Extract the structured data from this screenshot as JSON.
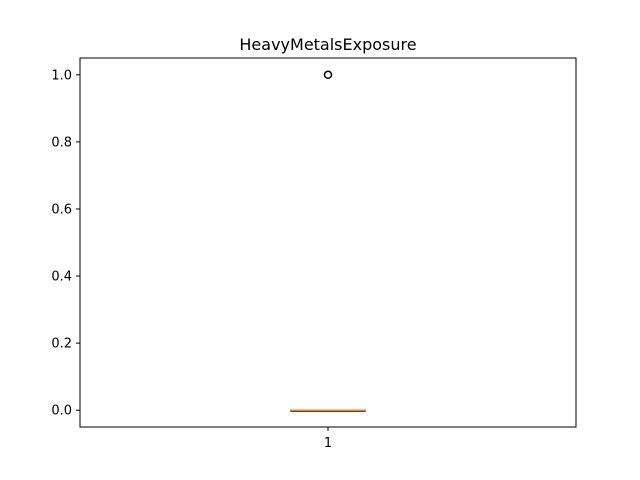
{
  "chart_data": {
    "type": "boxplot",
    "title": "HeavyMetalsExposure",
    "xlabel": "",
    "ylabel": "",
    "categories": [
      "1"
    ],
    "boxes": [
      {
        "category": "1",
        "q1": 0.0,
        "median": 0.0,
        "q3": 0.0,
        "whisker_low": 0.0,
        "whisker_high": 0.0,
        "outliers": [
          1.0
        ]
      }
    ],
    "ylim": [
      -0.05,
      1.05
    ],
    "yticks": [
      0.0,
      0.2,
      0.4,
      0.6,
      0.8,
      1.0
    ],
    "ytick_labels": [
      "0.0",
      "0.2",
      "0.4",
      "0.6",
      "0.8",
      "1.0"
    ],
    "grid": false,
    "colors": {
      "box": "#000000",
      "median": "#ff7f0e",
      "outlier": "#000000"
    }
  }
}
